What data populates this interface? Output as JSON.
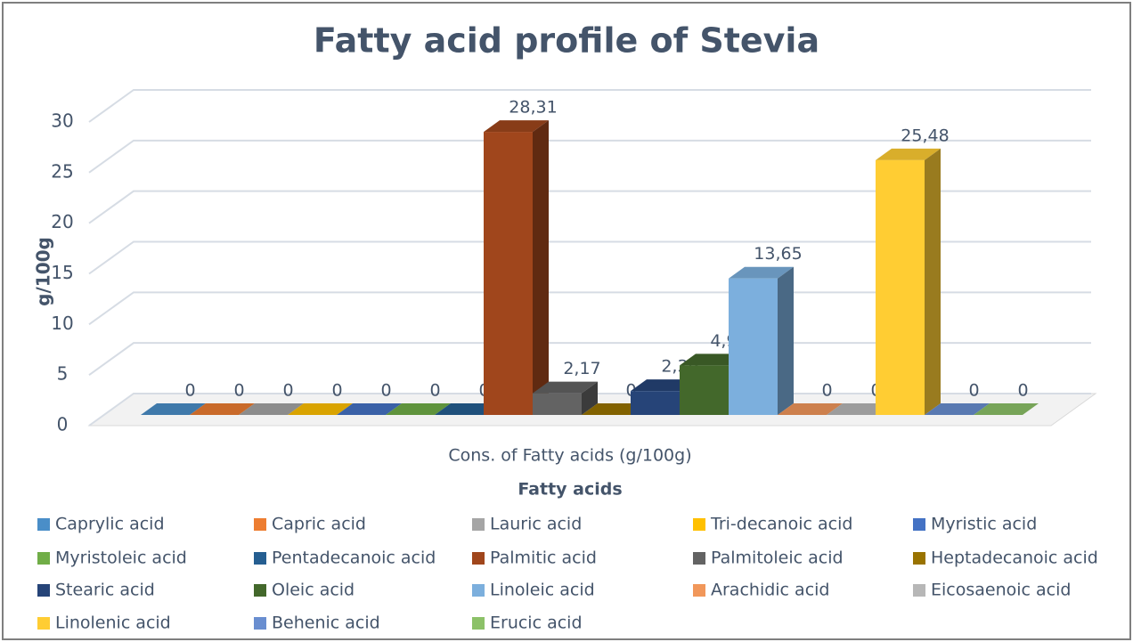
{
  "chart_data": {
    "type": "bar3d",
    "title": "Fatty acid profile of Stevia",
    "y_label": "g/100g",
    "x_label": "Fatty acids",
    "categories": [
      "Cons. of Fatty acids (g/100g)"
    ],
    "ylim": [
      0,
      30
    ],
    "yticks": [
      0,
      5,
      10,
      15,
      20,
      25,
      30
    ],
    "grid": true,
    "series": [
      {
        "name": "Caprylic acid",
        "color": "#4a8ec8",
        "values": [
          0
        ]
      },
      {
        "name": "Capric acid",
        "color": "#ed7d31",
        "values": [
          0
        ]
      },
      {
        "name": "Lauric acid",
        "color": "#a5a5a5",
        "values": [
          0
        ]
      },
      {
        "name": "Tri-decanoic acid",
        "color": "#ffc000",
        "values": [
          0
        ]
      },
      {
        "name": "Myristic acid",
        "color": "#4472c4",
        "values": [
          0
        ]
      },
      {
        "name": "Myristoleic acid",
        "color": "#70ad47",
        "values": [
          0
        ]
      },
      {
        "name": "Pentadecanoic acid",
        "color": "#255e91",
        "values": [
          0
        ]
      },
      {
        "name": "Palmitic acid",
        "color": "#a0461c",
        "values": [
          28.31
        ],
        "value_labels": [
          "28,31"
        ]
      },
      {
        "name": "Palmitoleic acid",
        "color": "#636363",
        "values": [
          2.17
        ],
        "value_labels": [
          "2,17"
        ]
      },
      {
        "name": "Heptadecanoic acid",
        "color": "#997300",
        "values": [
          0
        ]
      },
      {
        "name": "Stearic acid",
        "color": "#264478",
        "values": [
          2.39
        ],
        "value_labels": [
          "2,39"
        ]
      },
      {
        "name": "Oleic acid",
        "color": "#43682b",
        "values": [
          4.95
        ],
        "value_labels": [
          "4,95"
        ]
      },
      {
        "name": "Linoleic acid",
        "color": "#7cafdd",
        "values": [
          13.65
        ],
        "value_labels": [
          "13,65"
        ]
      },
      {
        "name": "Arachidic acid",
        "color": "#f1975a",
        "values": [
          0
        ]
      },
      {
        "name": "Eicosaenoic acid",
        "color": "#b7b7b7",
        "values": [
          0
        ]
      },
      {
        "name": "Linolenic acid",
        "color": "#ffcd33",
        "values": [
          25.48
        ],
        "value_labels": [
          "25,48"
        ]
      },
      {
        "name": "Behenic acid",
        "color": "#698ed0",
        "values": [
          0
        ]
      },
      {
        "name": "Erucic acid",
        "color": "#8cc168",
        "values": [
          0
        ]
      }
    ]
  }
}
